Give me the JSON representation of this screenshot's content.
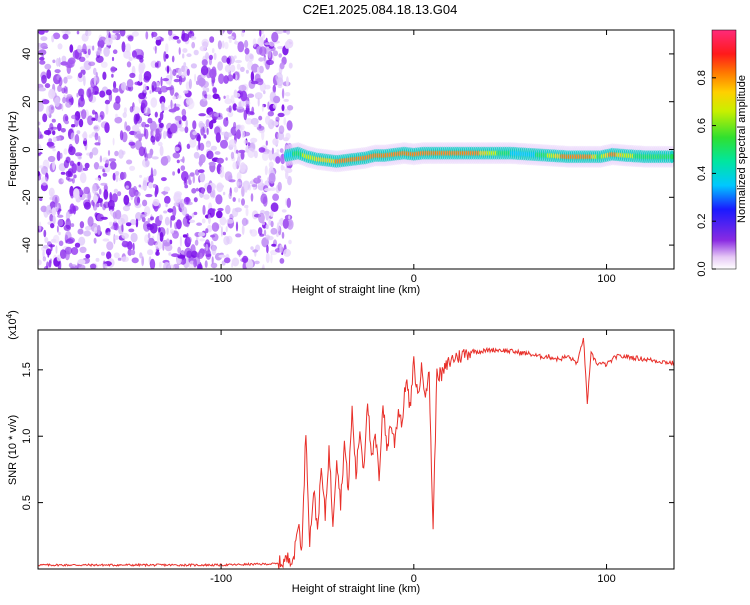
{
  "title": "C2E1.2025.084.18.13.G04",
  "chart_data": [
    {
      "type": "heatmap",
      "xlabel": "Height of straight line (km)",
      "ylabel": "Frequency (Hz)",
      "xlim": [
        -195,
        135
      ],
      "ylim": [
        -50,
        50
      ],
      "xticks": [
        -100,
        0,
        100
      ],
      "yticks": [
        -40,
        -20,
        0,
        20,
        40
      ],
      "colorbar": {
        "label": "Normalized spectral amplitude",
        "range": [
          0,
          1
        ],
        "ticks": [
          "0.0",
          "0.2",
          "0.4",
          "0.6",
          "0.8"
        ],
        "tick_values": [
          0,
          0.2,
          0.4,
          0.6,
          0.8
        ]
      },
      "noise_region_x": [
        -195,
        -68
      ],
      "signal_track": [
        {
          "x": -66,
          "y": -2.5,
          "a": 0.45
        },
        {
          "x": -60,
          "y": -1.5,
          "a": 0.6
        },
        {
          "x": -55,
          "y": -3,
          "a": 0.7
        },
        {
          "x": -50,
          "y": -4,
          "a": 0.75
        },
        {
          "x": -45,
          "y": -4.5,
          "a": 0.8
        },
        {
          "x": -40,
          "y": -5,
          "a": 0.85
        },
        {
          "x": -35,
          "y": -4.5,
          "a": 0.85
        },
        {
          "x": -30,
          "y": -4,
          "a": 0.85
        },
        {
          "x": -25,
          "y": -3.5,
          "a": 0.85
        },
        {
          "x": -20,
          "y": -2.5,
          "a": 0.85
        },
        {
          "x": -15,
          "y": -2.5,
          "a": 0.85
        },
        {
          "x": -10,
          "y": -2,
          "a": 0.85
        },
        {
          "x": -5,
          "y": -1.5,
          "a": 0.88
        },
        {
          "x": 0,
          "y": -2,
          "a": 0.9
        },
        {
          "x": 5,
          "y": -1.5,
          "a": 0.92
        },
        {
          "x": 10,
          "y": -1.5,
          "a": 0.95
        },
        {
          "x": 20,
          "y": -1.5,
          "a": 0.98
        },
        {
          "x": 30,
          "y": -1.5,
          "a": 0.95
        },
        {
          "x": 40,
          "y": -1.5,
          "a": 0.7
        },
        {
          "x": 50,
          "y": -1.5,
          "a": 0.55
        },
        {
          "x": 60,
          "y": -2,
          "a": 0.5
        },
        {
          "x": 70,
          "y": -2.5,
          "a": 0.65
        },
        {
          "x": 80,
          "y": -3,
          "a": 0.95
        },
        {
          "x": 90,
          "y": -3,
          "a": 0.95
        },
        {
          "x": 97,
          "y": -3,
          "a": 0.6
        },
        {
          "x": 103,
          "y": -2,
          "a": 0.95
        },
        {
          "x": 110,
          "y": -2.5,
          "a": 0.7
        },
        {
          "x": 120,
          "y": -3,
          "a": 0.6
        },
        {
          "x": 135,
          "y": -3,
          "a": 0.6
        }
      ]
    },
    {
      "type": "line",
      "xlabel": "Height of straight line (km)",
      "ylabel": "SNR (10 * v/v)",
      "yscale_label": "(x10",
      "yscale_exp": "4",
      "yscale_close": ")",
      "xlim": [
        -195,
        135
      ],
      "ylim": [
        0,
        1.8
      ],
      "xticks": [
        -100,
        0,
        100
      ],
      "yticks": [
        0.5,
        1.0,
        1.5
      ],
      "ytick_labels": [
        "0.5",
        "1.0",
        "1.5"
      ],
      "series": [
        {
          "color": "#e8302a",
          "x": [
            -195,
            -150,
            -100,
            -70,
            -62,
            -60,
            -58,
            -56,
            -54,
            -52,
            -50,
            -48,
            -46,
            -44,
            -42,
            -40,
            -38,
            -36,
            -34,
            -32,
            -30,
            -28,
            -26,
            -24,
            -22,
            -20,
            -18,
            -16,
            -14,
            -12,
            -10,
            -8,
            -6,
            -4,
            -2,
            0,
            2,
            4,
            6,
            8,
            10,
            12,
            14,
            16,
            18,
            20,
            22,
            24,
            26,
            28,
            30,
            35,
            40,
            45,
            50,
            55,
            60,
            65,
            70,
            75,
            80,
            85,
            88,
            90,
            92,
            95,
            100,
            105,
            110,
            115,
            120,
            125,
            130,
            135
          ],
          "y": [
            0.03,
            0.03,
            0.03,
            0.04,
            0.1,
            0.35,
            0.15,
            1.05,
            0.2,
            0.6,
            0.3,
            0.75,
            0.4,
            0.9,
            0.35,
            0.85,
            0.5,
            0.95,
            0.6,
            1.2,
            0.7,
            1.05,
            0.75,
            1.3,
            0.8,
            1.0,
            0.7,
            1.25,
            0.9,
            1.1,
            0.95,
            1.2,
            1.1,
            1.45,
            1.2,
            1.55,
            1.3,
            1.5,
            1.35,
            1.45,
            0.3,
            1.5,
            1.45,
            1.5,
            1.55,
            1.58,
            1.6,
            1.6,
            1.62,
            1.63,
            1.64,
            1.64,
            1.65,
            1.65,
            1.64,
            1.63,
            1.62,
            1.6,
            1.6,
            1.58,
            1.6,
            1.55,
            1.75,
            1.25,
            1.62,
            1.55,
            1.54,
            1.6,
            1.6,
            1.59,
            1.58,
            1.57,
            1.56,
            1.55
          ]
        }
      ]
    }
  ]
}
